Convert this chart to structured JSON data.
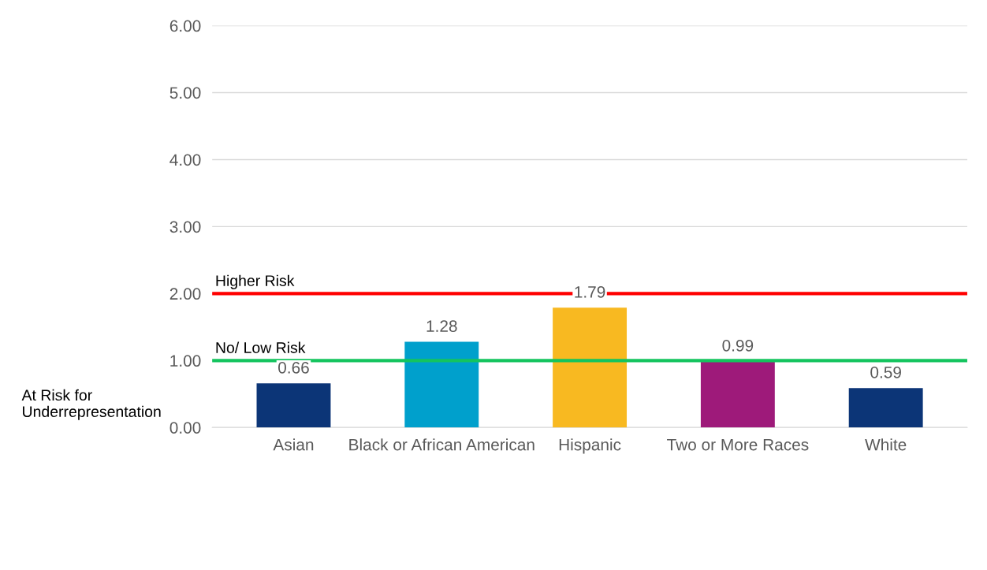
{
  "chart_data": {
    "type": "bar",
    "categories": [
      "Asian",
      "Black or African American",
      "Hispanic",
      "Two or More Races",
      "White"
    ],
    "values": [
      0.66,
      1.28,
      1.79,
      0.99,
      0.59
    ],
    "colors": [
      "#0c3577",
      "#00a0cc",
      "#f8b921",
      "#9e1a7a",
      "#0c3577"
    ],
    "value_labels": [
      "0.66",
      "1.28",
      "1.79",
      "0.99",
      "0.59"
    ],
    "ylim": [
      0,
      6
    ],
    "yticks": [
      {
        "value": 0,
        "label": "0.00"
      },
      {
        "value": 1,
        "label": "1.00"
      },
      {
        "value": 2,
        "label": "2.00"
      },
      {
        "value": 3,
        "label": "3.00"
      },
      {
        "value": 4,
        "label": "4.00"
      },
      {
        "value": 5,
        "label": "5.00"
      },
      {
        "value": 6,
        "label": "6.00"
      }
    ],
    "grid": "y",
    "ref_lines": [
      {
        "axis": "y",
        "value": 2,
        "label": "Higher Risk",
        "color": "#ff0000"
      },
      {
        "axis": "y",
        "value": 1,
        "label": "No/ Low Risk",
        "color": "#14c45e"
      }
    ],
    "annotations": [
      "At Risk for\nUnderrepresentation"
    ]
  }
}
